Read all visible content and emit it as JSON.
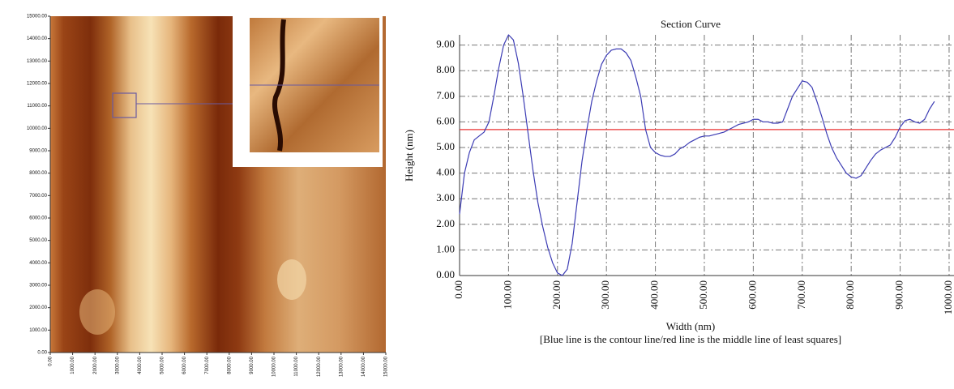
{
  "chart_data": [
    {
      "type": "image",
      "xlim": [
        0,
        15000
      ],
      "ylim": [
        0,
        15000
      ],
      "xticks": [
        {
          "value": 0,
          "label": "0.00"
        },
        {
          "value": 1000,
          "label": "1000.00"
        },
        {
          "value": 2000,
          "label": "2000.00"
        },
        {
          "value": 3000,
          "label": "3000.00"
        },
        {
          "value": 4000,
          "label": "4000.00"
        },
        {
          "value": 5000,
          "label": "5000.00"
        },
        {
          "value": 6000,
          "label": "6000.00"
        },
        {
          "value": 7000,
          "label": "7000.00"
        },
        {
          "value": 8000,
          "label": "8000.00"
        },
        {
          "value": 9000,
          "label": "9000.00"
        },
        {
          "value": 10000,
          "label": "10000.00"
        },
        {
          "value": 11000,
          "label": "11000.00"
        },
        {
          "value": 12000,
          "label": "12000.00"
        },
        {
          "value": 13000,
          "label": "13000.00"
        },
        {
          "value": 14000,
          "label": "14000.00"
        },
        {
          "value": 15000,
          "label": "15000.00"
        }
      ],
      "yticks": [
        {
          "value": 0,
          "label": "0.00"
        },
        {
          "value": 1000,
          "label": "1000.00"
        },
        {
          "value": 2000,
          "label": "2000.00"
        },
        {
          "value": 3000,
          "label": "3000.00"
        },
        {
          "value": 4000,
          "label": "4000.00"
        },
        {
          "value": 5000,
          "label": "5000.00"
        },
        {
          "value": 6000,
          "label": "6000.00"
        },
        {
          "value": 7000,
          "label": "7000.00"
        },
        {
          "value": 8000,
          "label": "8000.00"
        },
        {
          "value": 9000,
          "label": "9000.00"
        },
        {
          "value": 10000,
          "label": "10000.00"
        },
        {
          "value": 11000,
          "label": "11000.00"
        },
        {
          "value": 12000,
          "label": "12000.00"
        },
        {
          "value": 13000,
          "label": "13000.00"
        },
        {
          "value": 14000,
          "label": "14000.00"
        },
        {
          "value": 15000,
          "label": "15000.00"
        }
      ]
    },
    {
      "type": "line",
      "title": "Section Curve",
      "x_label": "Width (nm)",
      "y_label": "Height (nm)",
      "caption": "[Blue line is the contour line/red line is the middle line of least squares]",
      "x": [
        0,
        10,
        20,
        30,
        40,
        50,
        60,
        70,
        80,
        90,
        100,
        110,
        120,
        130,
        140,
        150,
        160,
        170,
        180,
        190,
        200,
        210,
        220,
        230,
        240,
        250,
        260,
        270,
        280,
        290,
        300,
        310,
        320,
        330,
        340,
        350,
        360,
        370,
        380,
        390,
        400,
        410,
        420,
        430,
        440,
        450,
        460,
        470,
        480,
        490,
        500,
        510,
        520,
        530,
        540,
        550,
        560,
        570,
        580,
        590,
        600,
        610,
        620,
        630,
        640,
        650,
        660,
        670,
        680,
        690,
        700,
        710,
        720,
        730,
        740,
        750,
        760,
        770,
        780,
        790,
        800,
        810,
        820,
        830,
        840,
        850,
        860,
        870,
        880,
        890,
        900,
        910,
        920,
        930,
        940,
        950,
        960,
        970
      ],
      "series": [
        {
          "color": "#3c3cb4",
          "values": [
            2.4,
            4.0,
            4.8,
            5.3,
            5.45,
            5.6,
            6.0,
            7.0,
            8.1,
            9.0,
            9.4,
            9.2,
            8.3,
            7.0,
            5.55,
            4.1,
            2.85,
            1.9,
            1.1,
            0.5,
            0.1,
            0.0,
            0.25,
            1.25,
            2.85,
            4.45,
            5.7,
            6.8,
            7.6,
            8.25,
            8.6,
            8.8,
            8.85,
            8.85,
            8.7,
            8.4,
            7.75,
            7.0,
            5.7,
            5.0,
            4.8,
            4.7,
            4.65,
            4.65,
            4.75,
            4.95,
            5.05,
            5.2,
            5.3,
            5.4,
            5.45,
            5.45,
            5.5,
            5.55,
            5.6,
            5.7,
            5.8,
            5.9,
            5.95,
            6.0,
            6.1,
            6.1,
            6.0,
            6.0,
            5.95,
            5.95,
            6.0,
            6.5,
            7.0,
            7.3,
            7.6,
            7.55,
            7.35,
            6.8,
            6.2,
            5.55,
            5.0,
            4.6,
            4.3,
            4.0,
            3.85,
            3.8,
            3.9,
            4.2,
            4.5,
            4.75,
            4.9,
            5.0,
            5.1,
            5.4,
            5.8,
            6.05,
            6.1,
            6.0,
            5.95,
            6.1,
            6.5,
            6.8
          ]
        }
      ],
      "reference_line": {
        "value": 5.7,
        "color": "#e83232"
      },
      "xlim": [
        0,
        1010
      ],
      "ylim": [
        0,
        9.4
      ],
      "xticks": [
        {
          "value": 0,
          "label": "0.00"
        },
        {
          "value": 100,
          "label": "100.00"
        },
        {
          "value": 200,
          "label": "200.00"
        },
        {
          "value": 300,
          "label": "300.00"
        },
        {
          "value": 400,
          "label": "400.00"
        },
        {
          "value": 500,
          "label": "500.00"
        },
        {
          "value": 600,
          "label": "600.00"
        },
        {
          "value": 700,
          "label": "700.00"
        },
        {
          "value": 800,
          "label": "800.00"
        },
        {
          "value": 900,
          "label": "900.00"
        },
        {
          "value": 1000,
          "label": "1000.00"
        }
      ],
      "yticks": [
        {
          "value": 0,
          "label": "0.00"
        },
        {
          "value": 1,
          "label": "1.00"
        },
        {
          "value": 2,
          "label": "2.00"
        },
        {
          "value": 3,
          "label": "3.00"
        },
        {
          "value": 4,
          "label": "4.00"
        },
        {
          "value": 5,
          "label": "5.00"
        },
        {
          "value": 6,
          "label": "6.00"
        },
        {
          "value": 7,
          "label": "7.00"
        },
        {
          "value": 8,
          "label": "8.00"
        },
        {
          "value": 9,
          "label": "9.00"
        }
      ],
      "grid": true
    }
  ]
}
